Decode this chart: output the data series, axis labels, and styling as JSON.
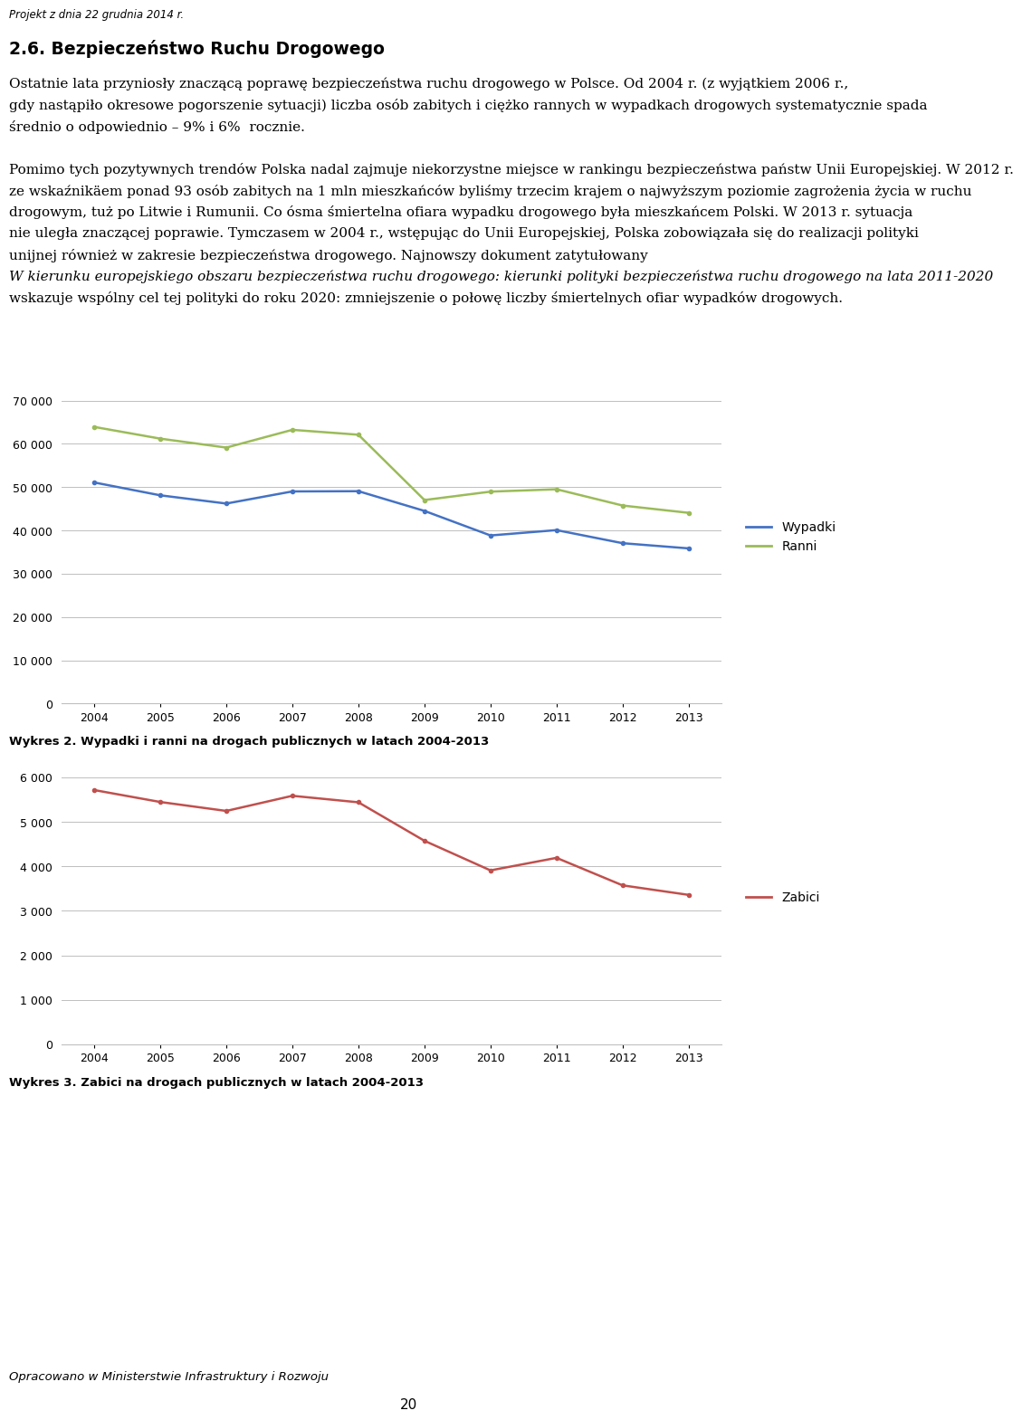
{
  "years": [
    2004,
    2005,
    2006,
    2007,
    2008,
    2009,
    2010,
    2011,
    2012,
    2013
  ],
  "wypadki": [
    51069,
    48100,
    46200,
    49000,
    49054,
    44501,
    38832,
    40065,
    37046,
    35847
  ],
  "ranni": [
    63900,
    61191,
    59123,
    63224,
    62097,
    47011,
    48952,
    49501,
    45745,
    44059
  ],
  "zabici": [
    5712,
    5444,
    5243,
    5583,
    5437,
    4572,
    3907,
    4189,
    3571,
    3357
  ],
  "chart1_ylim": [
    0,
    70000
  ],
  "chart1_yticks": [
    0,
    10000,
    20000,
    30000,
    40000,
    50000,
    60000,
    70000
  ],
  "chart2_ylim": [
    0,
    6000
  ],
  "chart2_yticks": [
    0,
    1000,
    2000,
    3000,
    4000,
    5000,
    6000
  ],
  "wypadki_color": "#4472C4",
  "ranni_color": "#9BBB59",
  "zabici_color": "#C0504D",
  "legend1_wypadki": "Wypadki",
  "legend1_ranni": "Ranni",
  "legend2_zabici": "Zabici",
  "caption1": "Wykres 2. Wypadki i ranni na drogach publicznych w latach 2004-2013",
  "caption2": "Wykres 3. Zabici na drogach publicznych w latach 2004-2013",
  "footer": "Opracowano w Ministerstwie Infrastruktury i Rozwoju",
  "page_number": "20",
  "header": "Projekt z dnia 22 grudnia 2014 r.",
  "section_title": "2.6. Bezpieczeństwo Ruchu Drogowego",
  "para1_line1": "Ostatnie lata przyniosły znaczącą poprawę bezpieczeństwa ruchu drogowego w Polsce. Od 2004 r. (z wyjątkiem 2006 r.,",
  "para1_line2": "gdy nastąpiło okresowe pogorszenie sytuacji) liczba osób zabitych i ciężko rannych w wypadkach drogowych systematycznie spada",
  "para1_line3": "średnio o odpowiednio – 9% i 6%  rocznie.",
  "para2_lines": [
    [
      "Pomimo tych pozytywnych trendów Polska nadal zajmuje niekorzystne miejsce w rankingu bezpieczeństwa państw Unii Europejskiej. W 2012 r.",
      false
    ],
    [
      "ze wskaźnikäem ponad 93 osób zabitych na 1 mln mieszkańców byliśmy trzecim krajem o najwyższym poziomie zagrożenia życia w ruchu",
      false
    ],
    [
      "drogowym, tuż po Litwie i Rumunii. Co ósma śmiertelna ofiara wypadku drogowego była mieszkańcem Polski. W 2013 r. sytuacja",
      false
    ],
    [
      "nie uległa znaczącej poprawie. Tymczasem w 2004 r., wstępując do Unii Europejskiej, Polska zobowiązała się do realizacji polityki",
      false
    ],
    [
      "unijnej również w zakresie bezpieczeństwa drogowego. Najnowszy dokument zatytułowany",
      false
    ],
    [
      "W kierunku europejskiego obszaru bezpieczeństwa ruchu drogowego: kierunki polityki bezpieczeństwa ruchu drogowego na lata 2011-2020",
      true
    ],
    [
      "wskazuje wspólny cel tej polityki do roku 2020: zmniejszenie o połowę liczby śmiertelnych ofiar wypadków drogowych.",
      false
    ]
  ]
}
